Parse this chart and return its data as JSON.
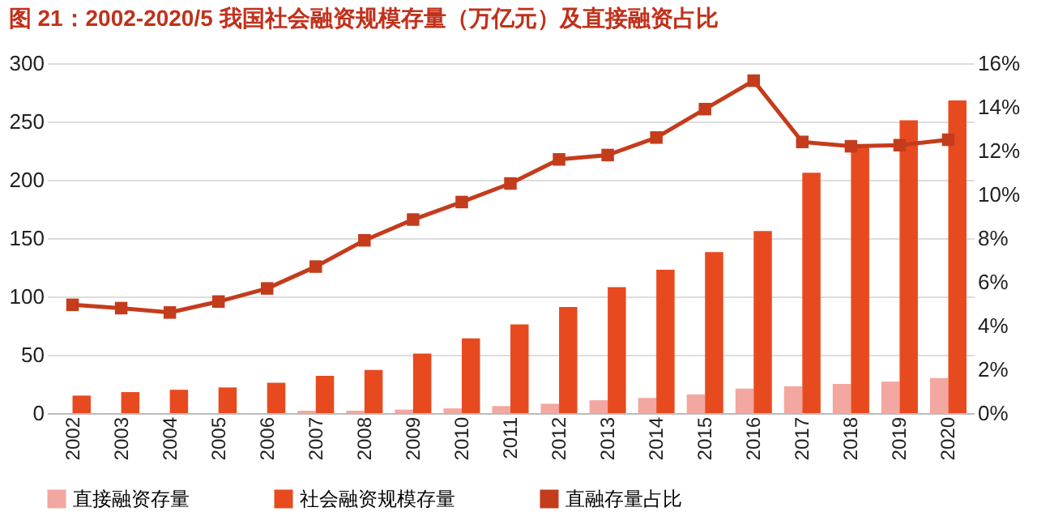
{
  "chart_data": {
    "type": "bar",
    "title": "图 21：2002-2020/5 我国社会融资规模存量（万亿元）及直接融资占比",
    "categories": [
      "2002",
      "2003",
      "2004",
      "2005",
      "2006",
      "2007",
      "2008",
      "2009",
      "2010",
      "2011",
      "2012",
      "2013",
      "2014",
      "2015",
      "2016",
      "2017",
      "2018",
      "2019",
      "2020"
    ],
    "series": [
      {
        "name": "直接融资存量",
        "color": "#f2a7a0",
        "values": [
          null,
          null,
          null,
          null,
          null,
          2,
          2,
          3,
          4,
          6,
          8,
          11,
          13,
          16,
          21,
          23,
          25,
          27,
          30
        ]
      },
      {
        "name": "社会融资规模存量",
        "color": "#e84a20",
        "values": [
          15,
          18,
          20,
          22,
          26,
          32,
          37,
          51,
          64,
          76,
          91,
          108,
          123,
          138,
          156,
          206,
          229,
          251,
          268
        ]
      },
      {
        "name": "直融存量占比",
        "type": "line",
        "axis": "y2",
        "color": "#c43c1c",
        "values": [
          4.95,
          4.8,
          4.6,
          5.1,
          5.7,
          6.7,
          7.9,
          8.85,
          9.65,
          10.5,
          11.6,
          11.8,
          12.6,
          13.9,
          15.2,
          12.4,
          12.2,
          12.25,
          12.5
        ]
      }
    ],
    "ylim": [
      0,
      300
    ],
    "yticks": [
      0,
      50,
      100,
      150,
      200,
      250,
      300
    ],
    "y2lim": [
      0,
      16
    ],
    "y2ticks": [
      {
        "value": 0,
        "label": "0%"
      },
      {
        "value": 2,
        "label": "2%"
      },
      {
        "value": 4,
        "label": "4%"
      },
      {
        "value": 6,
        "label": "6%"
      },
      {
        "value": 8,
        "label": "8%"
      },
      {
        "value": 10,
        "label": "10%"
      },
      {
        "value": 12,
        "label": "12%"
      },
      {
        "value": 14,
        "label": "14%"
      },
      {
        "value": 16,
        "label": "16%"
      }
    ],
    "grid": "y",
    "legend": "bottom",
    "marker": "square"
  }
}
